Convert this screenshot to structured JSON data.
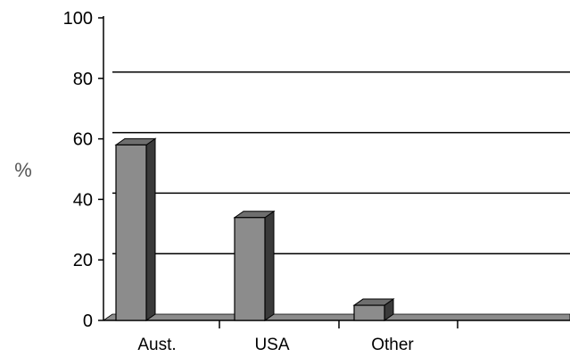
{
  "chart_data": {
    "type": "bar",
    "style": "3d-column",
    "categories": [
      "Aust.",
      "USA",
      "Other"
    ],
    "values": [
      58,
      34,
      5
    ],
    "title": "",
    "xlabel": "",
    "ylabel": "%",
    "ylim": [
      0,
      100
    ],
    "yticks": [
      0,
      20,
      40,
      60,
      80,
      100
    ],
    "grid": true,
    "legend": "none",
    "colors": {
      "bar_front": "#8c8c8c",
      "bar_top": "#6e6e6e",
      "bar_side": "#3a3a3a",
      "floor": "#8c8c8c",
      "grid": "#000000",
      "axis": "#000000"
    }
  }
}
